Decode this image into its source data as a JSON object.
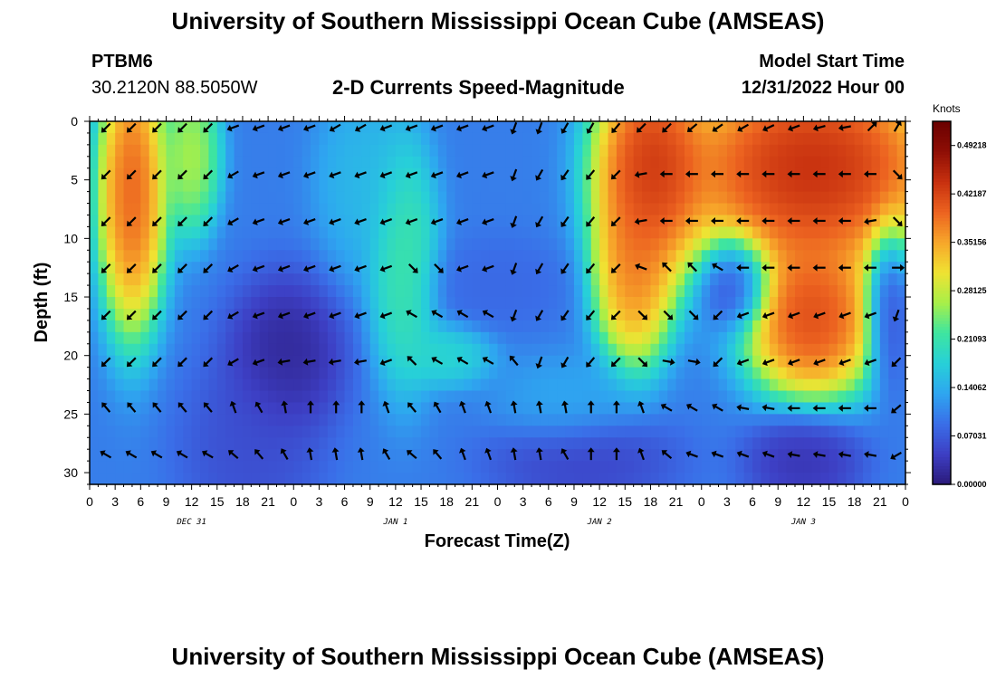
{
  "header": {
    "title": "University of Southern Mississippi Ocean Cube (AMSEAS)",
    "station": "PTBM6",
    "coords": "30.2120N  88.5050W",
    "subtitle": "2-D Currents Speed-Magnitude",
    "model_start_label": "Model Start Time",
    "model_start_value": "12/31/2022 Hour 00",
    "footer_title": "University of Southern Mississippi Ocean Cube (AMSEAS)"
  },
  "chart_data": {
    "type": "heatmap",
    "xlabel": "Forecast Time(Z)",
    "ylabel": "Depth (ft)",
    "xlim": [
      0,
      96
    ],
    "ylim": [
      31,
      0
    ],
    "x_tick_labels": [
      "0",
      "3",
      "6",
      "9",
      "12",
      "15",
      "18",
      "21",
      "0",
      "3",
      "6",
      "9",
      "12",
      "15",
      "18",
      "21",
      "0",
      "3",
      "6",
      "9",
      "12",
      "15",
      "18",
      "21",
      "0",
      "3",
      "6",
      "9",
      "12",
      "15",
      "18",
      "21",
      "0"
    ],
    "y_ticks": [
      0,
      5,
      10,
      15,
      20,
      25,
      30
    ],
    "day_labels": [
      {
        "label": "DEC 31",
        "hour": 12
      },
      {
        "label": "JAN 1",
        "hour": 36
      },
      {
        "label": "JAN 2",
        "hour": 60
      },
      {
        "label": "JAN 3",
        "hour": 84
      }
    ],
    "colorbar": {
      "unit": "Knots",
      "min": 0.0,
      "max": 0.5273,
      "tick_labels": [
        "0.00000",
        "0.07031",
        "0.14062",
        "0.21093",
        "0.28125",
        "0.35156",
        "0.42187",
        "0.49218"
      ],
      "tick_values": [
        0.0,
        0.07031,
        0.14062,
        0.21093,
        0.28125,
        0.35156,
        0.42187,
        0.49218
      ],
      "colors": [
        "#2b1a7a",
        "#3d3fc4",
        "#3a6ee8",
        "#2ea6f0",
        "#27d0d8",
        "#3ee5a0",
        "#a8ef48",
        "#f0e232",
        "#f7a62a",
        "#ec6220",
        "#c7300f",
        "#8e0e05",
        "#6a0000"
      ]
    },
    "speed_features": [
      {
        "hour": 5,
        "depth": 6,
        "speed": 0.46,
        "sx": 3,
        "sy": 9
      },
      {
        "hour": 12,
        "depth": 3,
        "speed": 0.3,
        "sx": 2.5,
        "sy": 5
      },
      {
        "hour": 23,
        "depth": 20,
        "speed": 0.0,
        "sx": 5,
        "sy": 5
      },
      {
        "hour": 19,
        "depth": 28,
        "speed": 0.05,
        "sx": 6,
        "sy": 6
      },
      {
        "hour": 32,
        "depth": 5,
        "speed": 0.16,
        "sx": 4,
        "sy": 6
      },
      {
        "hour": 37,
        "depth": 12,
        "speed": 0.24,
        "sx": 3,
        "sy": 8
      },
      {
        "hour": 48,
        "depth": 14,
        "speed": 0.08,
        "sx": 6,
        "sy": 3
      },
      {
        "hour": 56,
        "depth": 24,
        "speed": 0.14,
        "sx": 6,
        "sy": 3
      },
      {
        "hour": 58,
        "depth": 29,
        "speed": 0.04,
        "sx": 8,
        "sy": 3
      },
      {
        "hour": 66,
        "depth": 4,
        "speed": 0.5,
        "sx": 5,
        "sy": 7
      },
      {
        "hour": 64,
        "depth": 13,
        "speed": 0.42,
        "sx": 3.5,
        "sy": 6
      },
      {
        "hour": 85,
        "depth": 4,
        "speed": 0.52,
        "sx": 12,
        "sy": 7
      },
      {
        "hour": 85,
        "depth": 17,
        "speed": 0.48,
        "sx": 6,
        "sy": 5
      },
      {
        "hour": 76,
        "depth": 14,
        "speed": 0.03,
        "sx": 3,
        "sy": 3
      },
      {
        "hour": 94,
        "depth": 16,
        "speed": 0.03,
        "sx": 2,
        "sy": 5
      },
      {
        "hour": 84,
        "depth": 29,
        "speed": 0.02,
        "sx": 5,
        "sy": 3
      },
      {
        "hour": 42,
        "depth": 20,
        "speed": 0.2,
        "sx": 4,
        "sy": 2
      }
    ],
    "vector_hours": [
      2,
      5,
      8,
      11,
      14,
      17,
      20,
      23,
      26,
      29,
      32,
      35,
      38,
      41,
      44,
      47,
      50,
      53,
      56,
      59,
      62,
      65,
      68,
      71,
      74,
      77,
      80,
      83,
      86,
      89,
      92,
      95
    ],
    "vector_depths": [
      0.5,
      4.5,
      8.5,
      12.5,
      16.5,
      20.5,
      24.5,
      28.5
    ],
    "vector_directions_deg": [
      [
        225,
        225,
        225,
        225,
        225,
        250,
        250,
        250,
        250,
        240,
        240,
        250,
        250,
        250,
        250,
        250,
        200,
        200,
        210,
        210,
        220,
        225,
        225,
        230,
        235,
        240,
        245,
        250,
        255,
        260,
        45,
        30
      ],
      [
        225,
        225,
        225,
        225,
        225,
        240,
        250,
        250,
        250,
        250,
        250,
        250,
        250,
        250,
        250,
        250,
        200,
        210,
        215,
        220,
        225,
        260,
        270,
        270,
        270,
        270,
        270,
        270,
        270,
        270,
        270,
        135
      ],
      [
        225,
        225,
        225,
        225,
        225,
        240,
        250,
        250,
        250,
        250,
        250,
        250,
        250,
        250,
        250,
        250,
        200,
        210,
        215,
        220,
        225,
        260,
        270,
        270,
        270,
        270,
        270,
        270,
        270,
        270,
        260,
        135
      ],
      [
        225,
        225,
        225,
        225,
        225,
        240,
        250,
        250,
        250,
        250,
        250,
        250,
        135,
        135,
        250,
        250,
        200,
        210,
        215,
        220,
        225,
        290,
        315,
        315,
        300,
        270,
        270,
        270,
        270,
        270,
        270,
        90
      ],
      [
        225,
        225,
        225,
        225,
        225,
        240,
        250,
        250,
        250,
        250,
        250,
        250,
        300,
        300,
        300,
        300,
        200,
        210,
        215,
        220,
        225,
        135,
        135,
        135,
        225,
        250,
        250,
        250,
        250,
        250,
        250,
        200
      ],
      [
        225,
        225,
        225,
        225,
        225,
        240,
        250,
        260,
        260,
        260,
        260,
        250,
        315,
        300,
        300,
        300,
        320,
        200,
        210,
        220,
        225,
        135,
        100,
        100,
        225,
        250,
        250,
        250,
        250,
        250,
        250,
        225
      ],
      [
        320,
        320,
        320,
        320,
        320,
        340,
        330,
        350,
        0,
        0,
        0,
        340,
        320,
        330,
        340,
        340,
        350,
        350,
        350,
        0,
        0,
        340,
        300,
        300,
        300,
        280,
        280,
        270,
        270,
        270,
        270,
        230
      ],
      [
        300,
        300,
        300,
        300,
        300,
        310,
        320,
        330,
        350,
        350,
        350,
        330,
        310,
        320,
        340,
        340,
        350,
        350,
        330,
        0,
        0,
        340,
        310,
        290,
        290,
        290,
        290,
        280,
        280,
        280,
        280,
        240
      ]
    ]
  }
}
